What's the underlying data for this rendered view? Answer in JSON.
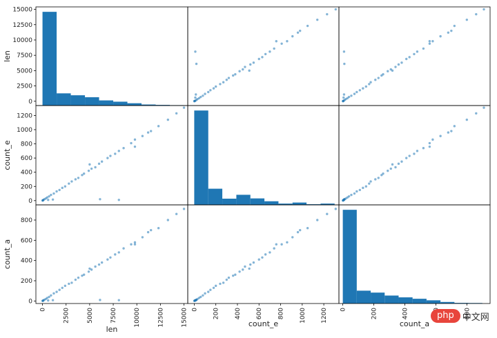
{
  "chart_data": {
    "type": "scatter_matrix",
    "variables": [
      "len",
      "count_e",
      "count_a"
    ],
    "ranges": {
      "len": [
        -700,
        15400
      ],
      "count_e": [
        -60,
        1340
      ],
      "count_a": [
        -25,
        950
      ]
    },
    "ticks": {
      "len": [
        0,
        2500,
        5000,
        7500,
        10000,
        12500,
        15000
      ],
      "count_e": [
        0,
        200,
        400,
        600,
        800,
        1000,
        1200
      ],
      "count_a": [
        0,
        200,
        400,
        600,
        800
      ]
    },
    "histograms": {
      "len": {
        "bin_edges": [
          0,
          1500,
          3000,
          4500,
          6000,
          7500,
          9000,
          10500,
          12000,
          13500,
          15000
        ],
        "counts": [
          730,
          95,
          80,
          65,
          40,
          30,
          18,
          8,
          5,
          3
        ]
      },
      "count_e": {
        "bin_edges": [
          0,
          130,
          260,
          390,
          520,
          650,
          780,
          910,
          1040,
          1170,
          1300
        ],
        "counts": [
          730,
          125,
          48,
          78,
          50,
          28,
          10,
          18,
          5,
          10
        ]
      },
      "count_a": {
        "bin_edges": [
          0,
          90,
          180,
          270,
          360,
          450,
          540,
          630,
          720,
          810,
          900
        ],
        "counts": [
          730,
          100,
          85,
          62,
          48,
          37,
          25,
          12,
          5,
          4
        ]
      }
    },
    "points": {
      "len": [
        15000,
        14200,
        13300,
        12300,
        11200,
        10600,
        9800,
        9400,
        8600,
        8100,
        7700,
        7200,
        6900,
        6300,
        6000,
        5600,
        5200,
        4900,
        4400,
        4200,
        3800,
        3500,
        3100,
        2800,
        2400,
        2100,
        1800,
        1500,
        1200,
        900,
        700,
        500,
        350,
        200,
        100,
        50,
        30,
        10,
        600,
        1100,
        6100,
        8100,
        9800,
        11500,
        5000
      ],
      "count_e": [
        1310,
        1230,
        1140,
        1050,
        960,
        910,
        860,
        810,
        740,
        700,
        660,
        630,
        600,
        550,
        520,
        470,
        450,
        420,
        380,
        360,
        320,
        300,
        270,
        240,
        200,
        180,
        150,
        130,
        100,
        80,
        60,
        45,
        30,
        20,
        10,
        5,
        3,
        1,
        10,
        15,
        20,
        10,
        760,
        980,
        510
      ],
      "count_a": [
        910,
        860,
        800,
        720,
        680,
        630,
        580,
        560,
        520,
        480,
        460,
        430,
        410,
        380,
        360,
        340,
        310,
        290,
        260,
        250,
        230,
        210,
        180,
        170,
        150,
        130,
        110,
        90,
        75,
        55,
        40,
        30,
        20,
        12,
        6,
        3,
        2,
        1,
        5,
        8,
        10,
        8,
        560,
        700,
        320
      ]
    }
  },
  "watermark": {
    "pill": "php",
    "text": "中文网"
  }
}
